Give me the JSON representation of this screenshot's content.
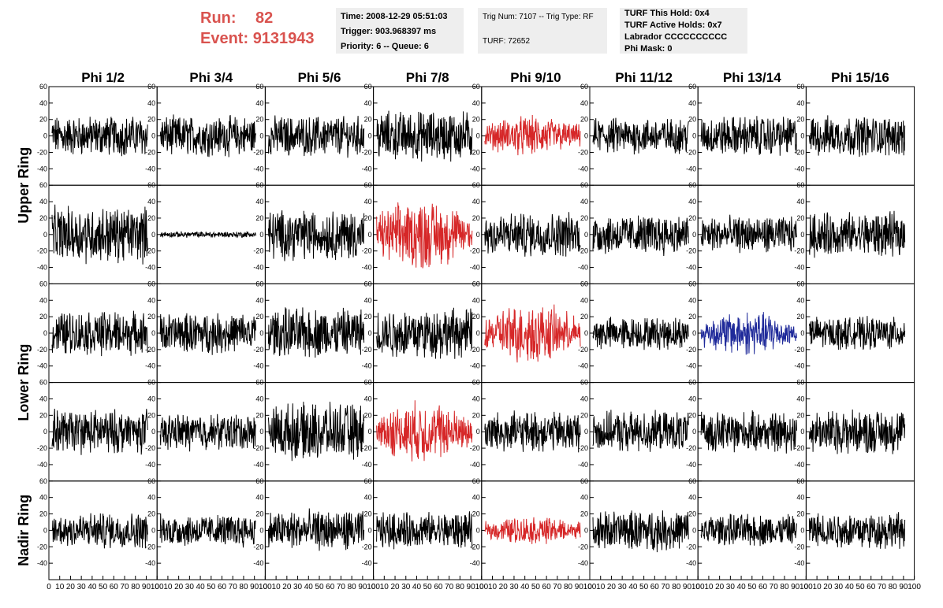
{
  "header": {
    "run_label": "Run:",
    "run_value": "82",
    "event_label": "Event:",
    "event_value": "9131943"
  },
  "info1": {
    "time": "Time: 2008-12-29 05:51:03",
    "trigger": "Trigger: 903.968397 ms",
    "priority": "Priority: 6 -- Queue: 6"
  },
  "info2": {
    "trig": "Trig Num: 7107 -- Trig Type: RF",
    "turf": "TURF: 72652"
  },
  "info3": {
    "this_hold": "TURF This Hold: 0x4",
    "active_holds": "TURF Active Holds: 0x7",
    "labrador": "Labrador CCCCCCCCCC",
    "phi_mask": "Phi Mask: 0"
  },
  "chart_data": {
    "type": "line",
    "columns": [
      "Phi 1/2",
      "Phi 3/4",
      "Phi 5/6",
      "Phi 7/8",
      "Phi 9/10",
      "Phi 11/12",
      "Phi 13/14",
      "Phi 15/16"
    ],
    "ring_labels": [
      {
        "label": "Upper Ring",
        "rows": [
          0,
          1
        ]
      },
      {
        "label": "Lower Ring",
        "rows": [
          2,
          3
        ]
      },
      {
        "label": "Nadir Ring",
        "rows": [
          4
        ]
      }
    ],
    "ylim": [
      -60,
      60
    ],
    "y_ticks": [
      -40,
      -20,
      0,
      20,
      40,
      60
    ],
    "xlim": [
      0,
      100
    ],
    "x_ticks": [
      0,
      10,
      20,
      30,
      40,
      50,
      60,
      70,
      80,
      90,
      100
    ],
    "colors": {
      "normal": "#000000",
      "triggered": "#d62728",
      "blue": "#1f2a9a"
    },
    "rows": [
      {
        "amplitudes": [
          20,
          20,
          20,
          25,
          20,
          18,
          20,
          20
        ],
        "states": [
          "normal",
          "normal",
          "normal",
          "normal",
          "triggered",
          "normal",
          "normal",
          "normal"
        ]
      },
      {
        "amplitudes": [
          28,
          3,
          25,
          35,
          22,
          20,
          18,
          22
        ],
        "states": [
          "normal",
          "normal",
          "normal",
          "triggered",
          "normal",
          "normal",
          "normal",
          "normal"
        ]
      },
      {
        "amplitudes": [
          22,
          20,
          25,
          25,
          30,
          16,
          22,
          16
        ],
        "states": [
          "normal",
          "normal",
          "normal",
          "normal",
          "triggered",
          "normal",
          "blue",
          "normal"
        ]
      },
      {
        "amplitudes": [
          22,
          18,
          28,
          30,
          20,
          20,
          20,
          22
        ],
        "states": [
          "normal",
          "normal",
          "normal",
          "triggered",
          "normal",
          "normal",
          "normal",
          "normal"
        ]
      },
      {
        "amplitudes": [
          18,
          16,
          20,
          18,
          14,
          20,
          16,
          18
        ],
        "states": [
          "normal",
          "normal",
          "normal",
          "normal",
          "triggered",
          "normal",
          "normal",
          "normal"
        ]
      }
    ]
  }
}
